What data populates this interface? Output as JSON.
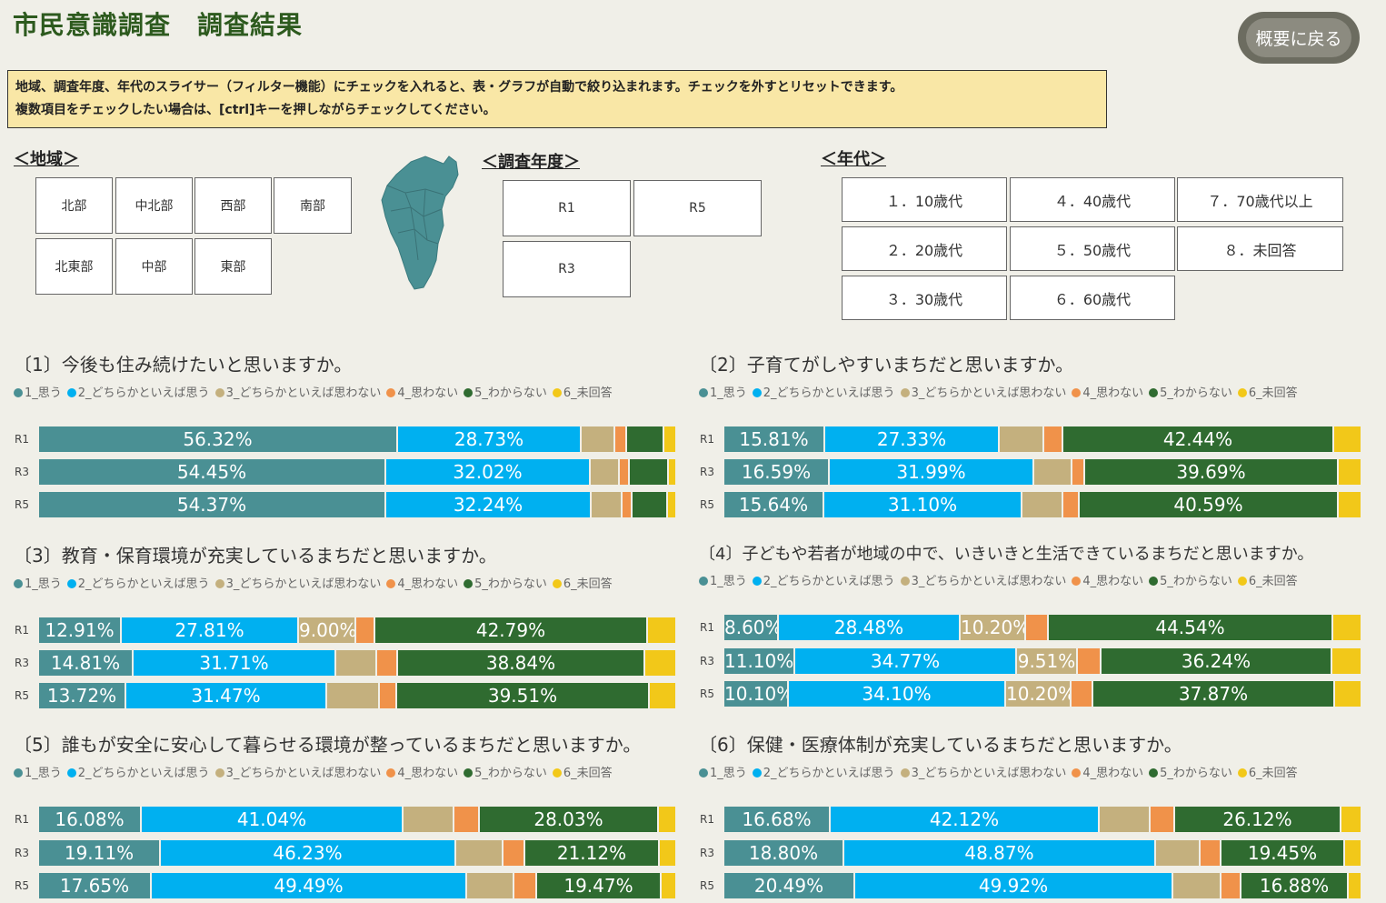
{
  "page": {
    "title": "市民意識調査　調査結果",
    "back_button": "概要に戻る",
    "notice_line1": "地域、調査年度、年代のスライサー（フィルター機能）にチェックを入れると、表・グラフが自動で絞り込まれます。チェックを外すとリセットできます。",
    "notice_line2": "複数項目をチェックしたい場合は、[ctrl]キーを押しながらチェックしてください。"
  },
  "slicers": {
    "region": {
      "title": "＜地域＞",
      "items": [
        "北部",
        "中北部",
        "西部",
        "南部",
        "北東部",
        "中部",
        "東部"
      ]
    },
    "year": {
      "title": "＜調査年度＞",
      "items": [
        "R1",
        "R5",
        "R3"
      ]
    },
    "age": {
      "title": "＜年代＞",
      "items": [
        "１．10歳代",
        "４．40歳代",
        "７．70歳代以上",
        "２．20歳代",
        "５．50歳代",
        "８．未回答",
        "３．30歳代",
        "６．60歳代"
      ]
    }
  },
  "legend": [
    "1_思う",
    "2_どちらかといえば思う",
    "3_どちらかといえば思わない",
    "4_思わない",
    "5_わからない",
    "6_未回答"
  ],
  "colors": [
    "#4a9094",
    "#00b0f0",
    "#c4b07e",
    "#f0924a",
    "#2f6b30",
    "#f2c819"
  ],
  "chart_data": [
    {
      "type": "bar",
      "stacked": true,
      "orientation": "horizontal",
      "percent": true,
      "title": "〔1〕今後も住み続けたいと思いますか。",
      "categories": [
        "R1",
        "R3",
        "R5"
      ],
      "series": [
        {
          "name": "1_思う",
          "values": [
            56.32,
            54.45,
            54.37
          ]
        },
        {
          "name": "2_どちらかといえば思う",
          "values": [
            28.73,
            32.02,
            32.24
          ]
        },
        {
          "name": "3_どちらかといえば思わない",
          "values": [
            5.2,
            4.6,
            4.8
          ]
        },
        {
          "name": "4_思わない",
          "values": [
            1.9,
            1.5,
            1.6
          ]
        },
        {
          "name": "5_わからない",
          "values": [
            5.8,
            6.1,
            5.5
          ]
        },
        {
          "name": "6_未回答",
          "values": [
            2.05,
            1.32,
            1.49
          ]
        }
      ]
    },
    {
      "type": "bar",
      "stacked": true,
      "orientation": "horizontal",
      "percent": true,
      "title": "〔2〕子育てがしやすいまちだと思いますか。",
      "categories": [
        "R1",
        "R3",
        "R5"
      ],
      "series": [
        {
          "name": "1_思う",
          "values": [
            15.81,
            16.59,
            15.64
          ]
        },
        {
          "name": "2_どちらかといえば思う",
          "values": [
            27.33,
            31.99,
            31.1
          ]
        },
        {
          "name": "3_どちらかといえば思わない",
          "values": [
            7.0,
            6.0,
            6.4
          ]
        },
        {
          "name": "4_思わない",
          "values": [
            3.0,
            2.0,
            2.6
          ]
        },
        {
          "name": "5_わからない",
          "values": [
            42.44,
            39.69,
            40.59
          ]
        },
        {
          "name": "6_未回答",
          "values": [
            4.42,
            3.73,
            3.67
          ]
        }
      ]
    },
    {
      "type": "bar",
      "stacked": true,
      "orientation": "horizontal",
      "percent": true,
      "title": "〔3〕教育・保育環境が充実しているまちだと思いますか。",
      "categories": [
        "R1",
        "R3",
        "R5"
      ],
      "series": [
        {
          "name": "1_思う",
          "values": [
            12.91,
            14.81,
            13.72
          ]
        },
        {
          "name": "2_どちらかといえば思う",
          "values": [
            27.81,
            31.71,
            31.47
          ]
        },
        {
          "name": "3_どちらかといえば思わない",
          "values": [
            9.0,
            6.5,
            8.2
          ]
        },
        {
          "name": "4_思わない",
          "values": [
            3.0,
            3.2,
            2.8
          ]
        },
        {
          "name": "5_わからない",
          "values": [
            42.79,
            38.84,
            39.51
          ]
        },
        {
          "name": "6_未回答",
          "values": [
            4.49,
            4.94,
            4.3
          ]
        }
      ]
    },
    {
      "type": "bar",
      "stacked": true,
      "orientation": "horizontal",
      "percent": true,
      "title": "〔4〕子どもや若者が地域の中で、いきいきと生活できているまちだと思いますか。",
      "categories": [
        "R1",
        "R3",
        "R5"
      ],
      "series": [
        {
          "name": "1_思う",
          "values": [
            8.6,
            11.1,
            10.1
          ]
        },
        {
          "name": "2_どちらかといえば思う",
          "values": [
            28.48,
            34.77,
            34.1
          ]
        },
        {
          "name": "3_どちらかといえば思わない",
          "values": [
            10.2,
            9.51,
            10.2
          ]
        },
        {
          "name": "4_思わない",
          "values": [
            3.6,
            3.7,
            3.4
          ]
        },
        {
          "name": "5_わからない",
          "values": [
            44.54,
            36.24,
            37.87
          ]
        },
        {
          "name": "6_未回答",
          "values": [
            4.58,
            4.68,
            4.33
          ]
        }
      ]
    },
    {
      "type": "bar",
      "stacked": true,
      "orientation": "horizontal",
      "percent": true,
      "title": "〔5〕誰もが安全に安心して暮らせる環境が整っているまちだと思いますか。",
      "categories": [
        "R1",
        "R3",
        "R5"
      ],
      "series": [
        {
          "name": "1_思う",
          "values": [
            16.08,
            19.11,
            17.65
          ]
        },
        {
          "name": "2_どちらかといえば思う",
          "values": [
            41.04,
            46.23,
            49.49
          ]
        },
        {
          "name": "3_どちらかといえば思わない",
          "values": [
            8.0,
            7.4,
            7.3
          ]
        },
        {
          "name": "4_思わない",
          "values": [
            4.0,
            3.4,
            3.6
          ]
        },
        {
          "name": "5_わからない",
          "values": [
            28.03,
            21.12,
            19.47
          ]
        },
        {
          "name": "6_未回答",
          "values": [
            2.85,
            2.74,
            2.49
          ]
        }
      ]
    },
    {
      "type": "bar",
      "stacked": true,
      "orientation": "horizontal",
      "percent": true,
      "title": "〔6〕保健・医療体制が充実しているまちだと思いますか。",
      "categories": [
        "R1",
        "R3",
        "R5"
      ],
      "series": [
        {
          "name": "1_思う",
          "values": [
            16.68,
            18.8,
            20.49
          ]
        },
        {
          "name": "2_どちらかといえば思う",
          "values": [
            42.12,
            48.87,
            49.92
          ]
        },
        {
          "name": "3_どちらかといえば思わない",
          "values": [
            8.0,
            7.0,
            7.5
          ]
        },
        {
          "name": "4_思わない",
          "values": [
            3.8,
            3.2,
            3.1
          ]
        },
        {
          "name": "5_わからない",
          "values": [
            26.12,
            19.45,
            16.88
          ]
        },
        {
          "name": "6_未回答",
          "values": [
            3.28,
            2.68,
            2.11
          ]
        }
      ]
    }
  ]
}
